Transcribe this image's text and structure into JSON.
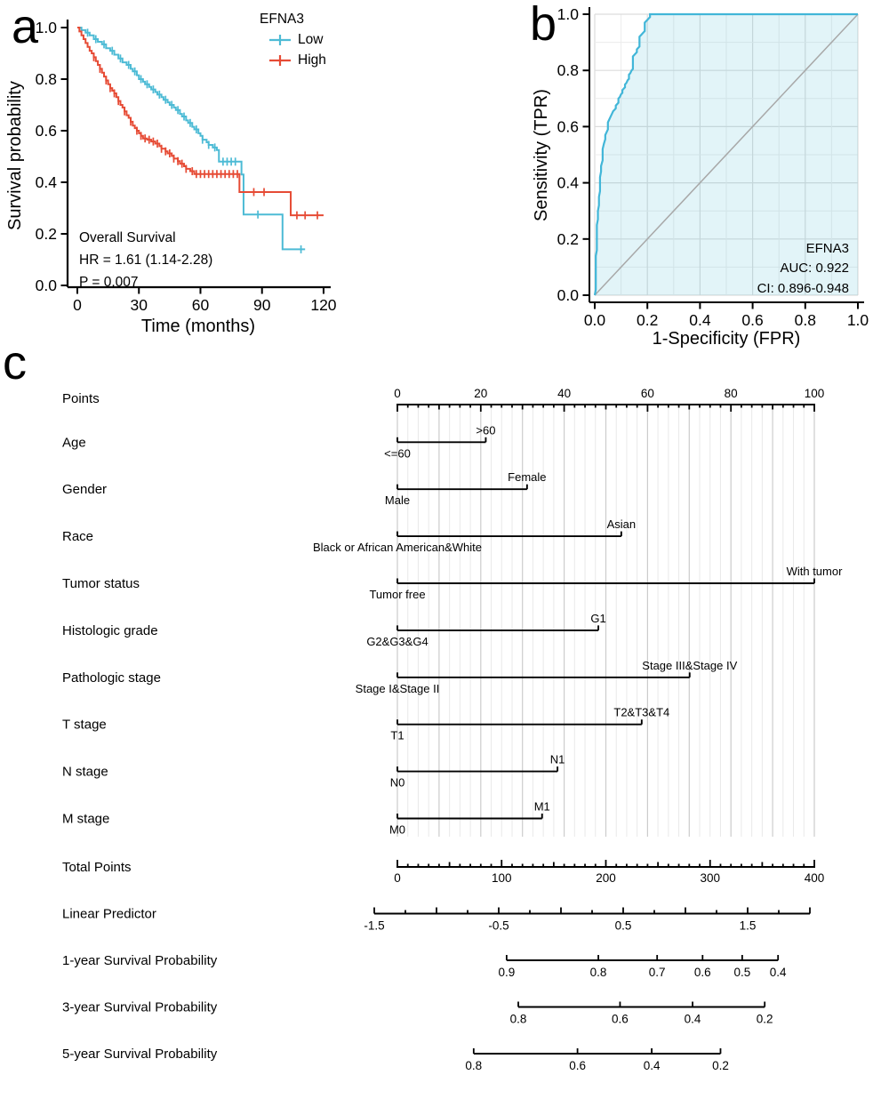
{
  "figure": {
    "background": "#ffffff",
    "colors": {
      "low": "#4DBBD5",
      "high": "#E64B35",
      "roc_line": "#41B6D8",
      "roc_fill": "rgba(77,187,213,0.16)",
      "diagonal": "#a8a8a8",
      "grid_major": "#cccccc",
      "grid_minor": "#e9e9e9"
    }
  },
  "chart_data": [
    {
      "id": "km",
      "type": "line",
      "subtype": "kaplan-meier",
      "panel_label": "a",
      "xlabel": "Time (months)",
      "ylabel": "Survival probability",
      "xlim": [
        0,
        125
      ],
      "ylim": [
        0.0,
        1.0
      ],
      "x_ticks": [
        0,
        30,
        60,
        90,
        120
      ],
      "y_ticks": [
        0.0,
        0.2,
        0.4,
        0.6,
        0.8,
        1.0
      ],
      "legend_title": "EFNA3",
      "annotation": [
        "Overall Survival",
        "HR = 1.61 (1.14-2.28)",
        "P = 0.007"
      ],
      "series": [
        {
          "name": "Low",
          "color": "#4DBBD5",
          "end": 111,
          "steps": [
            [
              0,
              1.0
            ],
            [
              2,
              0.99
            ],
            [
              4,
              0.98
            ],
            [
              6,
              0.97
            ],
            [
              8,
              0.955
            ],
            [
              10,
              0.945
            ],
            [
              12,
              0.935
            ],
            [
              14,
              0.92
            ],
            [
              16,
              0.91
            ],
            [
              18,
              0.895
            ],
            [
              20,
              0.88
            ],
            [
              22,
              0.865
            ],
            [
              24,
              0.855
            ],
            [
              26,
              0.84
            ],
            [
              27,
              0.83
            ],
            [
              29,
              0.815
            ],
            [
              30,
              0.8
            ],
            [
              32,
              0.79
            ],
            [
              33,
              0.78
            ],
            [
              35,
              0.77
            ],
            [
              36,
              0.76
            ],
            [
              38,
              0.75
            ],
            [
              39,
              0.74
            ],
            [
              41,
              0.73
            ],
            [
              42,
              0.72
            ],
            [
              44,
              0.71
            ],
            [
              45,
              0.7
            ],
            [
              47,
              0.69
            ],
            [
              48,
              0.68
            ],
            [
              50,
              0.665
            ],
            [
              51,
              0.655
            ],
            [
              53,
              0.64
            ],
            [
              54,
              0.63
            ],
            [
              56,
              0.615
            ],
            [
              57,
              0.605
            ],
            [
              59,
              0.59
            ],
            [
              60,
              0.58
            ],
            [
              61,
              0.565
            ],
            [
              63,
              0.555
            ],
            [
              64,
              0.545
            ],
            [
              66,
              0.535
            ],
            [
              68,
              0.525
            ],
            [
              69,
              0.48
            ],
            [
              80,
              0.43
            ],
            [
              81,
              0.275
            ],
            [
              100,
              0.14
            ]
          ],
          "censors": [
            5,
            9,
            13,
            17,
            21,
            25,
            28,
            31,
            34,
            37,
            40,
            43,
            46,
            49,
            52,
            55,
            58,
            61,
            64,
            67,
            71,
            73,
            75,
            77,
            88,
            109
          ]
        },
        {
          "name": "High",
          "color": "#E64B35",
          "end": 120,
          "steps": [
            [
              0,
              1.0
            ],
            [
              1,
              0.985
            ],
            [
              2,
              0.97
            ],
            [
              3,
              0.955
            ],
            [
              4,
              0.94
            ],
            [
              5,
              0.925
            ],
            [
              6,
              0.91
            ],
            [
              7,
              0.9
            ],
            [
              8,
              0.885
            ],
            [
              9,
              0.87
            ],
            [
              10,
              0.855
            ],
            [
              11,
              0.84
            ],
            [
              12,
              0.825
            ],
            [
              13,
              0.81
            ],
            [
              14,
              0.795
            ],
            [
              15,
              0.78
            ],
            [
              16,
              0.765
            ],
            [
              17,
              0.755
            ],
            [
              18,
              0.745
            ],
            [
              19,
              0.73
            ],
            [
              20,
              0.715
            ],
            [
              21,
              0.7
            ],
            [
              22,
              0.69
            ],
            [
              23,
              0.675
            ],
            [
              24,
              0.66
            ],
            [
              25,
              0.65
            ],
            [
              26,
              0.635
            ],
            [
              27,
              0.62
            ],
            [
              28,
              0.61
            ],
            [
              29,
              0.6
            ],
            [
              30,
              0.59
            ],
            [
              31,
              0.58
            ],
            [
              32,
              0.57
            ],
            [
              34,
              0.565
            ],
            [
              36,
              0.558
            ],
            [
              38,
              0.55
            ],
            [
              40,
              0.54
            ],
            [
              41,
              0.53
            ],
            [
              43,
              0.52
            ],
            [
              44,
              0.512
            ],
            [
              46,
              0.502
            ],
            [
              47,
              0.492
            ],
            [
              49,
              0.482
            ],
            [
              50,
              0.472
            ],
            [
              52,
              0.462
            ],
            [
              53,
              0.452
            ],
            [
              55,
              0.443
            ],
            [
              57,
              0.432
            ],
            [
              79,
              0.362
            ],
            [
              104,
              0.272
            ]
          ],
          "censors": [
            8,
            11,
            14,
            16,
            18,
            20,
            23,
            26,
            29,
            31,
            33,
            35,
            37,
            39,
            41,
            43,
            45,
            47,
            49,
            51,
            53,
            56,
            58,
            60,
            62,
            64,
            66,
            68,
            70,
            72,
            74,
            76,
            78,
            86,
            91,
            107,
            111,
            117
          ]
        }
      ]
    },
    {
      "id": "roc",
      "type": "line",
      "subtype": "roc",
      "panel_label": "b",
      "xlabel": "1-Specificity (FPR)",
      "ylabel": "Sensitivity (TPR)",
      "xlim": [
        0.0,
        1.0
      ],
      "ylim": [
        0.0,
        1.0
      ],
      "x_ticks": [
        0.0,
        0.2,
        0.4,
        0.6,
        0.8,
        1.0
      ],
      "y_ticks": [
        0.0,
        0.2,
        0.4,
        0.6,
        0.8,
        1.0
      ],
      "annotation": [
        "EFNA3",
        "AUC: 0.922",
        "CI: 0.896-0.948"
      ],
      "curve": [
        [
          0,
          0
        ],
        [
          0.004,
          0.02
        ],
        [
          0.004,
          0.14
        ],
        [
          0.008,
          0.16
        ],
        [
          0.008,
          0.25
        ],
        [
          0.012,
          0.27
        ],
        [
          0.012,
          0.3
        ],
        [
          0.016,
          0.32
        ],
        [
          0.016,
          0.35
        ],
        [
          0.02,
          0.37
        ],
        [
          0.02,
          0.42
        ],
        [
          0.024,
          0.44
        ],
        [
          0.024,
          0.46
        ],
        [
          0.03,
          0.48
        ],
        [
          0.03,
          0.52
        ],
        [
          0.035,
          0.54
        ],
        [
          0.04,
          0.555
        ],
        [
          0.04,
          0.57
        ],
        [
          0.05,
          0.59
        ],
        [
          0.05,
          0.615
        ],
        [
          0.055,
          0.625
        ],
        [
          0.06,
          0.635
        ],
        [
          0.065,
          0.645
        ],
        [
          0.07,
          0.655
        ],
        [
          0.075,
          0.66
        ],
        [
          0.08,
          0.665
        ],
        [
          0.08,
          0.675
        ],
        [
          0.09,
          0.685
        ],
        [
          0.09,
          0.7
        ],
        [
          0.095,
          0.705
        ],
        [
          0.1,
          0.715
        ],
        [
          0.105,
          0.72
        ],
        [
          0.105,
          0.73
        ],
        [
          0.11,
          0.735
        ],
        [
          0.115,
          0.74
        ],
        [
          0.115,
          0.75
        ],
        [
          0.12,
          0.755
        ],
        [
          0.125,
          0.765
        ],
        [
          0.13,
          0.77
        ],
        [
          0.13,
          0.785
        ],
        [
          0.135,
          0.79
        ],
        [
          0.14,
          0.8
        ],
        [
          0.145,
          0.805
        ],
        [
          0.145,
          0.85
        ],
        [
          0.15,
          0.855
        ],
        [
          0.155,
          0.86
        ],
        [
          0.16,
          0.865
        ],
        [
          0.16,
          0.875
        ],
        [
          0.165,
          0.88
        ],
        [
          0.17,
          0.885
        ],
        [
          0.17,
          0.92
        ],
        [
          0.175,
          0.925
        ],
        [
          0.18,
          0.93
        ],
        [
          0.185,
          0.935
        ],
        [
          0.19,
          0.94
        ],
        [
          0.19,
          0.97
        ],
        [
          0.195,
          0.975
        ],
        [
          0.2,
          0.98
        ],
        [
          0.205,
          0.985
        ],
        [
          0.21,
          0.99
        ],
        [
          0.21,
          1.0
        ],
        [
          1,
          1
        ]
      ]
    },
    {
      "id": "nomogram",
      "type": "nomogram",
      "panel_label": "c",
      "points_axis": {
        "label": "Points",
        "min": 0,
        "max": 100,
        "labeled_step": 20,
        "mid_step": 10,
        "minor_step": 2.5
      },
      "variables": [
        {
          "label": "Age",
          "low": "<=60",
          "high": ">60",
          "points": 21.2
        },
        {
          "label": "Gender",
          "low": "Male",
          "high": "Female",
          "points": 31.1
        },
        {
          "label": "Race",
          "low": "Black or African American&White",
          "high": "Asian",
          "points": 53.7
        },
        {
          "label": "Tumor status",
          "low": "Tumor free",
          "high": "With tumor",
          "points": 100
        },
        {
          "label": "Histologic grade",
          "low": "G2&G3&G4",
          "high": "G1",
          "points": 48.2
        },
        {
          "label": "Pathologic stage",
          "low": "Stage I&Stage II",
          "high": "Stage III&Stage IV",
          "points": 70.1
        },
        {
          "label": "T stage",
          "low": "T1",
          "high": "T2&T3&T4",
          "points": 58.6
        },
        {
          "label": "N stage",
          "low": "N0",
          "high": "N1",
          "points": 38.4
        },
        {
          "label": "M stage",
          "low": "M0",
          "high": "M1",
          "points": 34.7
        }
      ],
      "total_points_axis": {
        "label": "Total Points",
        "min": 0,
        "max": 400,
        "labeled_step": 100,
        "mid_step": 50,
        "minor_step": 10
      },
      "linear_predictor_axis": {
        "label": "Linear Predictor",
        "min": -1.5,
        "max": 2.0,
        "minor_step": 0.25,
        "labels": [
          -1.5,
          -0.5,
          0.5,
          1.5
        ]
      },
      "survival_axes": [
        {
          "label": "1-year Survival Probability",
          "ticks": [
            {
              "value": 0.9,
              "pos": 26.2
            },
            {
              "value": 0.8,
              "pos": 48.2
            },
            {
              "value": 0.7,
              "pos": 62.3
            },
            {
              "value": 0.6,
              "pos": 73.2
            },
            {
              "value": 0.5,
              "pos": 82.7
            },
            {
              "value": 0.4,
              "pos": 91.3
            }
          ]
        },
        {
          "label": "3-year Survival Probability",
          "ticks": [
            {
              "value": 0.8,
              "pos": 29.0
            },
            {
              "value": 0.6,
              "pos": 53.4
            },
            {
              "value": 0.4,
              "pos": 70.8
            },
            {
              "value": 0.2,
              "pos": 88.1
            }
          ]
        },
        {
          "label": "5-year Survival Probability",
          "ticks": [
            {
              "value": 0.8,
              "pos": 18.3
            },
            {
              "value": 0.6,
              "pos": 43.2
            },
            {
              "value": 0.4,
              "pos": 61.0
            },
            {
              "value": 0.2,
              "pos": 77.5
            }
          ]
        }
      ]
    }
  ]
}
